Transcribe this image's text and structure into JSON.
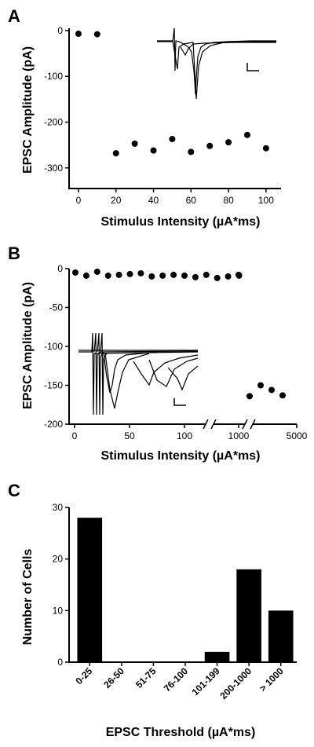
{
  "chart_data": [
    {
      "panel": "A",
      "type": "scatter",
      "xlabel": "Stimulus Intensity (µA*ms)",
      "ylabel": "EPSC Amplitude (pA)",
      "xlim": [
        -5,
        108
      ],
      "ylim": [
        -345,
        5
      ],
      "xticks": [
        "0",
        "20",
        "40",
        "60",
        "80",
        "100"
      ],
      "yticks": [
        "0",
        "-100",
        "-200",
        "-300"
      ],
      "x": [
        0,
        10,
        20,
        30,
        40,
        50,
        60,
        70,
        80,
        90,
        100
      ],
      "y": [
        -7,
        -8,
        -268,
        -247,
        -262,
        -237,
        -265,
        -252,
        -244,
        -228,
        -257
      ],
      "inset": "overlaid EPSC traces with scale bar"
    },
    {
      "panel": "B",
      "type": "scatter",
      "xlabel": "Stimulus Intensity (µA*ms)",
      "ylabel": "EPSC Amplitude (pA)",
      "ylim": [
        -200,
        0
      ],
      "axis_breaks": "two broken x-axis segments",
      "xticks": [
        "0",
        "50",
        "100",
        "1000",
        "5000"
      ],
      "yticks": [
        "0",
        "-50",
        "-100",
        "-150",
        "-200"
      ],
      "x": [
        "0",
        "10",
        "20",
        "30",
        "40",
        "50",
        "60",
        "70",
        "80",
        "90",
        "100",
        "110",
        "120",
        "200",
        "300",
        "500",
        "700",
        "1000",
        "2000",
        "3000",
        "4000"
      ],
      "y": [
        -5,
        -9,
        -4,
        -9,
        -8,
        -7,
        -6,
        -10,
        -9,
        -8,
        -9,
        -11,
        -8,
        -12,
        -10,
        -9,
        -8,
        -164,
        -150,
        -156,
        -163
      ],
      "inset": "overlaid EPSC traces with scale bar"
    },
    {
      "panel": "C",
      "type": "bar",
      "xlabel": "EPSC Threshold (µA*ms)",
      "ylabel": "Number of Cells",
      "ylim": [
        0,
        30
      ],
      "yticks": [
        "0",
        "10",
        "20",
        "30"
      ],
      "categories": [
        "0-25",
        "26-50",
        "51-75",
        "76-100",
        "101-199",
        "200-1000",
        "> 1000"
      ],
      "values": [
        28,
        0,
        0,
        0,
        2,
        18,
        10
      ]
    }
  ],
  "labels": {
    "panel_a": "A",
    "panel_b": "B",
    "panel_c": "C"
  },
  "colors": {
    "marks": "#000000",
    "background": "#ffffff"
  }
}
